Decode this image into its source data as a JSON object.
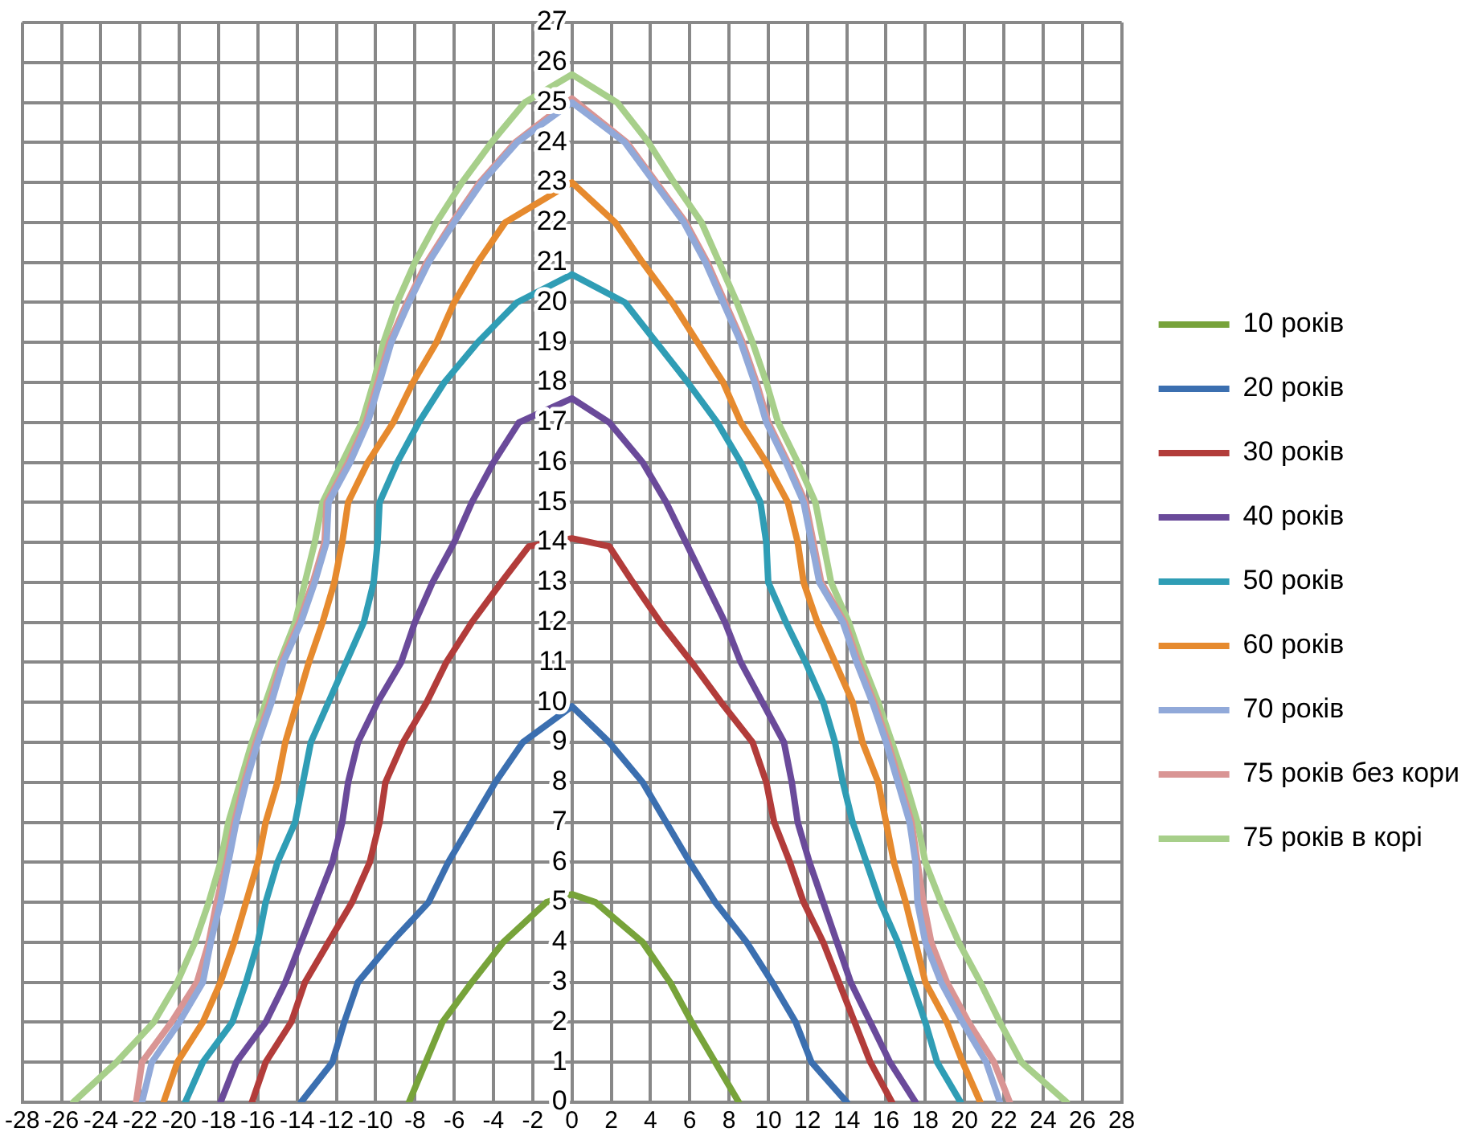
{
  "chart_data": {
    "type": "line",
    "xlim": [
      -28,
      28
    ],
    "ylim": [
      0,
      27
    ],
    "xticks": [
      -28,
      -26,
      -24,
      -22,
      -20,
      -18,
      -16,
      -14,
      -12,
      -10,
      -8,
      -6,
      -4,
      -2,
      0,
      2,
      4,
      6,
      8,
      10,
      12,
      14,
      16,
      18,
      20,
      22,
      24,
      26,
      28
    ],
    "yticks": [
      0,
      1,
      2,
      3,
      4,
      5,
      6,
      7,
      8,
      9,
      10,
      11,
      12,
      13,
      14,
      15,
      16,
      17,
      18,
      19,
      20,
      21,
      22,
      23,
      24,
      25,
      26,
      27
    ],
    "grid": true,
    "legend": "right",
    "marker": "none",
    "line_style": "solid",
    "series": [
      {
        "name": "10 років",
        "color": "#77a33a",
        "x": [
          -8.3,
          -6.6,
          -5.1,
          -3.5,
          -1.3,
          0,
          1.2,
          3.6,
          5.0,
          6.1,
          7.3,
          8.5
        ],
        "values": [
          0,
          2,
          3,
          4,
          5,
          5.2,
          5,
          4,
          3,
          2,
          1,
          0
        ]
      },
      {
        "name": "20 років",
        "color": "#3b6fb0",
        "x": [
          -13.8,
          -12.2,
          -11.6,
          -10.9,
          -9.2,
          -7.3,
          -6.3,
          -5.1,
          -3.9,
          -2.5,
          0,
          1.9,
          3.6,
          4.8,
          6.0,
          7.3,
          8.9,
          10.2,
          11.4,
          12.2,
          14.0
        ],
        "values": [
          0,
          1,
          2,
          3,
          4,
          5,
          6,
          7,
          8,
          9,
          9.9,
          9,
          8,
          7,
          6,
          5,
          4,
          3,
          2,
          1,
          0
        ]
      },
      {
        "name": "30 років",
        "color": "#b23c3a",
        "x": [
          -16.3,
          -15.6,
          -14.3,
          -13.6,
          -12.4,
          -11.2,
          -10.3,
          -9.8,
          -9.5,
          -8.6,
          -7.4,
          -6.4,
          -5.1,
          -3.6,
          -2.2,
          0,
          1.9,
          3.1,
          4.5,
          6.1,
          7.6,
          9.2,
          9.9,
          10.3,
          11.1,
          11.8,
          12.8,
          13.6,
          14.4,
          15.2,
          16.3
        ],
        "values": [
          0,
          1,
          2,
          3,
          4,
          5,
          6,
          7,
          8,
          9,
          10,
          11,
          12,
          13,
          13.9,
          14.1,
          13.9,
          13,
          12,
          11,
          10,
          9,
          8,
          7,
          6,
          5,
          4,
          3,
          2,
          1,
          0
        ]
      },
      {
        "name": "40 років",
        "color": "#6a4a9a",
        "x": [
          -17.9,
          -17.1,
          -15.6,
          -14.6,
          -13.8,
          -13.0,
          -12.2,
          -11.7,
          -11.4,
          -10.9,
          -9.9,
          -8.7,
          -8.0,
          -7.1,
          -6.0,
          -5.1,
          -4.0,
          -2.7,
          0,
          1.9,
          3.6,
          4.8,
          5.8,
          6.8,
          7.8,
          8.6,
          9.7,
          10.8,
          11.2,
          11.5,
          12.1,
          12.8,
          13.5,
          14.2,
          15.2,
          16.2,
          17.5
        ],
        "values": [
          0,
          1,
          2,
          3,
          4,
          5,
          6,
          7,
          8,
          9,
          10,
          11,
          12,
          13,
          14,
          15,
          16,
          17,
          17.6,
          17,
          16,
          15,
          14,
          13,
          12,
          11,
          10,
          9,
          8,
          7,
          6,
          5,
          4,
          3,
          2,
          1,
          0
        ]
      },
      {
        "name": "50 років",
        "color": "#2f9db5",
        "x": [
          -19.7,
          -18.8,
          -17.3,
          -16.6,
          -16.0,
          -15.6,
          -15.0,
          -14.1,
          -13.7,
          -13.3,
          -12.4,
          -11.5,
          -10.6,
          -10.1,
          -9.9,
          -9.8,
          -8.9,
          -7.8,
          -6.5,
          -4.8,
          -2.8,
          0,
          2.7,
          4.3,
          5.9,
          7.4,
          8.6,
          9.6,
          9.9,
          10.0,
          10.9,
          11.9,
          12.8,
          13.4,
          13.8,
          14.3,
          15.0,
          15.7,
          16.6,
          17.3,
          18.0,
          18.6,
          19.8
        ],
        "values": [
          0,
          1,
          2,
          3,
          4,
          5,
          6,
          7,
          8,
          9,
          10,
          11,
          12,
          13,
          14,
          15,
          16,
          17,
          18,
          19,
          20,
          20.7,
          20,
          19,
          18,
          17,
          16,
          15,
          14,
          13,
          12,
          11,
          10,
          9,
          8,
          7,
          6,
          5,
          4,
          3,
          2,
          1,
          0
        ]
      },
      {
        "name": "60 років",
        "color": "#e68a2e",
        "x": [
          -20.8,
          -20.1,
          -18.8,
          -17.9,
          -17.2,
          -16.6,
          -16.0,
          -15.6,
          -15.0,
          -14.6,
          -14.0,
          -13.4,
          -12.7,
          -12.1,
          -11.7,
          -11.4,
          -10.4,
          -9.1,
          -8.1,
          -6.9,
          -6.0,
          -4.8,
          -3.4,
          0,
          2.2,
          3.6,
          5.1,
          6.4,
          7.7,
          8.6,
          9.9,
          11.0,
          11.5,
          11.8,
          12.5,
          13.4,
          14.3,
          14.8,
          15.6,
          16.0,
          16.4,
          17.0,
          17.5,
          18.0,
          19.1,
          19.9,
          20.8
        ],
        "values": [
          0,
          1,
          2,
          3,
          4,
          5,
          6,
          7,
          8,
          9,
          10,
          11,
          12,
          13,
          14,
          15,
          16,
          17,
          18,
          19,
          20,
          21,
          22,
          23,
          22,
          21,
          20,
          19,
          18,
          17,
          16,
          15,
          14,
          13,
          12,
          11,
          10,
          9,
          8,
          7,
          6,
          5,
          4,
          3,
          2,
          1,
          0
        ]
      },
      {
        "name": "70 років",
        "color": "#91a9d9",
        "x": [
          -21.9,
          -21.4,
          -20.0,
          -18.8,
          -18.4,
          -17.9,
          -17.5,
          -17.1,
          -16.6,
          -16.0,
          -15.3,
          -14.7,
          -13.8,
          -13.1,
          -12.5,
          -12.4,
          -11.3,
          -10.4,
          -9.8,
          -9.2,
          -8.3,
          -7.3,
          -6.0,
          -4.6,
          -2.8,
          0,
          2.7,
          4.2,
          5.7,
          6.8,
          7.7,
          8.6,
          9.3,
          9.9,
          10.9,
          11.8,
          12.2,
          12.6,
          13.8,
          14.5,
          15.3,
          16.0,
          16.6,
          17.2,
          17.5,
          17.6,
          18.0,
          18.8,
          19.9,
          21.1,
          21.8
        ],
        "values": [
          0,
          1,
          2,
          3,
          4,
          5,
          6,
          7,
          8,
          9,
          10,
          11,
          12,
          13,
          14,
          15,
          16,
          17,
          18,
          19,
          20,
          21,
          22,
          23,
          24,
          25,
          24,
          23,
          22,
          21,
          20,
          19,
          18,
          17,
          16,
          15,
          14,
          13,
          12,
          11,
          10,
          9,
          8,
          7,
          6,
          5,
          4,
          3,
          2,
          1,
          0
        ]
      },
      {
        "name": "75 років без кори",
        "color": "#d99594",
        "x": [
          -22.2,
          -21.9,
          -20.4,
          -19.1,
          -18.5,
          -18.1,
          -17.6,
          -17.2,
          -16.7,
          -16.1,
          -15.4,
          -14.8,
          -13.9,
          -13.2,
          -12.6,
          -12.5,
          -11.4,
          -10.5,
          -9.9,
          -9.3,
          -8.4,
          -7.4,
          -6.1,
          -4.7,
          -2.9,
          0,
          2.8,
          4.3,
          5.8,
          6.9,
          7.8,
          8.7,
          9.4,
          10.0,
          11.0,
          11.9,
          12.3,
          12.7,
          13.9,
          14.6,
          15.4,
          16.1,
          16.7,
          17.3,
          17.6,
          17.9,
          18.3,
          19.1,
          20.2,
          21.5,
          22.3
        ],
        "values": [
          0,
          1,
          2,
          3,
          4,
          5,
          6,
          7,
          8,
          9,
          10,
          11,
          12,
          13,
          14,
          15,
          16,
          17,
          18,
          19,
          20,
          21,
          22,
          23,
          24,
          25.1,
          24,
          23,
          22,
          21,
          20,
          19,
          18,
          17,
          16,
          15,
          14,
          13,
          12,
          11,
          10,
          9,
          8,
          7,
          6,
          5,
          4,
          3,
          2,
          1,
          0
        ]
      },
      {
        "name": "75 років в корі",
        "color": "#a7cf8a",
        "x": [
          -25.4,
          -23.2,
          -21.3,
          -20.1,
          -19.2,
          -18.5,
          -17.9,
          -17.5,
          -16.9,
          -16.3,
          -15.6,
          -14.9,
          -14.1,
          -13.6,
          -13.1,
          -12.7,
          -11.7,
          -10.7,
          -10.1,
          -9.6,
          -8.9,
          -8.0,
          -6.9,
          -5.6,
          -4.1,
          -2.4,
          0,
          2.3,
          3.9,
          5.2,
          6.6,
          7.5,
          8.4,
          9.2,
          9.9,
          10.5,
          11.5,
          12.4,
          12.8,
          13.2,
          14.1,
          14.8,
          15.6,
          16.3,
          17.0,
          17.6,
          18.0,
          18.8,
          19.7,
          20.8,
          21.8,
          22.9,
          25.2
        ],
        "values": [
          0,
          1,
          2,
          3,
          4,
          5,
          6,
          7,
          8,
          9,
          10,
          11,
          12,
          13,
          14,
          15,
          16,
          17,
          18,
          19,
          20,
          21,
          22,
          23,
          24,
          25,
          25.7,
          25,
          24,
          23,
          22,
          21,
          20,
          19,
          18,
          17,
          16,
          15,
          14,
          13,
          12,
          11,
          10,
          9,
          8,
          7,
          6,
          5,
          4,
          3,
          2,
          1,
          0
        ]
      }
    ]
  }
}
